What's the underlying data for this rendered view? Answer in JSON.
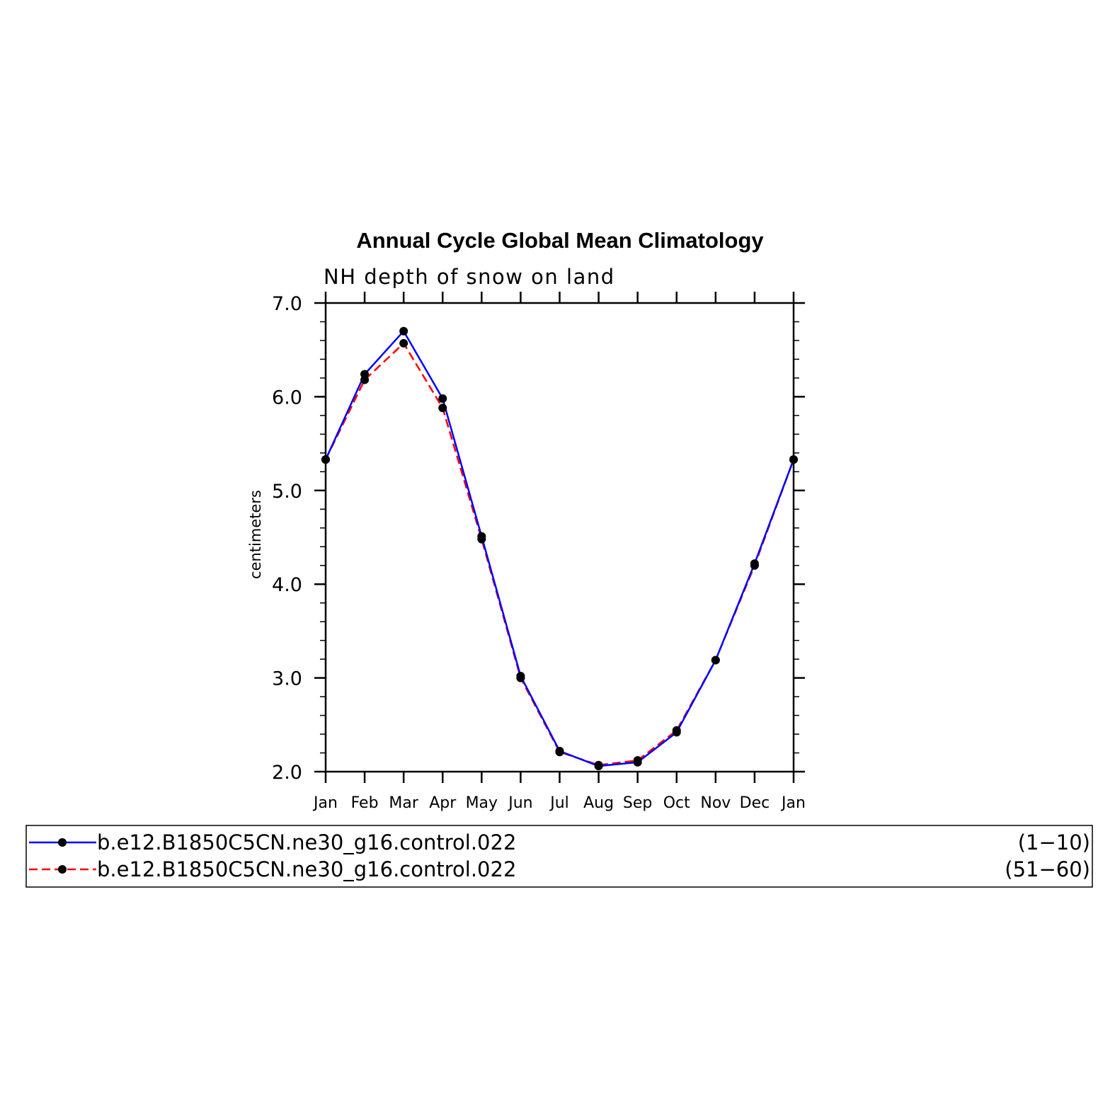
{
  "chart_data": {
    "type": "line",
    "title": "Annual Cycle Global Mean Climatology",
    "subtitle": "NH depth of snow on land",
    "ylabel": "centimeters",
    "xlabel": "",
    "ylim": [
      2.0,
      7.0
    ],
    "yticks": [
      "2.0",
      "3.0",
      "4.0",
      "5.0",
      "6.0",
      "7.0"
    ],
    "categories": [
      "Jan",
      "Feb",
      "Mar",
      "Apr",
      "May",
      "Jun",
      "Jul",
      "Aug",
      "Sep",
      "Oct",
      "Nov",
      "Dec",
      "Jan"
    ],
    "series": [
      {
        "name": "b.e12.B1850C5CN.ne30_g16.control.022",
        "range": "(1−10)",
        "color": "#0000ff",
        "dash": "solid",
        "values": [
          5.33,
          6.24,
          6.7,
          5.98,
          4.51,
          3.02,
          2.22,
          2.06,
          2.1,
          2.42,
          3.19,
          4.22,
          5.33
        ]
      },
      {
        "name": "b.e12.B1850C5CN.ne30_g16.control.022",
        "range": "(51−60)",
        "color": "#ff0000",
        "dash": "dashed",
        "values": [
          5.33,
          6.18,
          6.57,
          5.88,
          4.48,
          3.0,
          2.21,
          2.07,
          2.12,
          2.44,
          3.19,
          4.2,
          5.33
        ]
      }
    ],
    "grid": false,
    "legend_position": "bottom"
  }
}
